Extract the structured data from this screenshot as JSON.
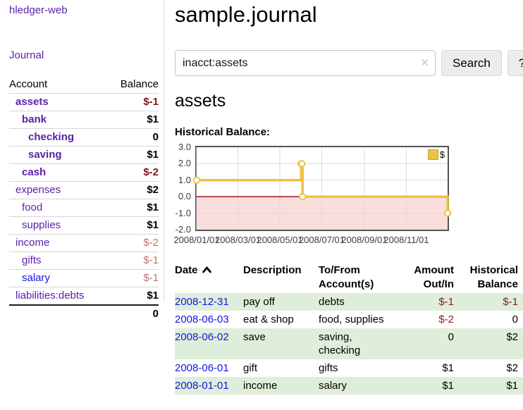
{
  "app": {
    "brand": "hledger-web",
    "nav_journal": "Journal"
  },
  "colors": {
    "link_purple": "#5b1fa8",
    "link_blue": "#1515e0",
    "negative_strong": "#7d1717",
    "negative_muted": "#bf7070",
    "register_negative": "#8b1a1a",
    "row_stripe_green": "#dfeeda",
    "series_gold": "#EDC240",
    "zero_line_red": "#8b0000",
    "below_zero_pink": "#fadddd"
  },
  "sidebar": {
    "table": {
      "col_account": "Account",
      "col_balance": "Balance"
    },
    "accounts": [
      {
        "name": "assets",
        "depth": 1,
        "bold": true,
        "link": "purple",
        "balance": "$-1",
        "amount_style": "neg-strong"
      },
      {
        "name": "bank",
        "depth": 2,
        "bold": true,
        "link": "purple",
        "balance": "$1",
        "amount_style": "pos"
      },
      {
        "name": "checking",
        "depth": 3,
        "bold": true,
        "link": "purple",
        "balance": "0",
        "amount_style": "pos"
      },
      {
        "name": "saving",
        "depth": 3,
        "bold": true,
        "link": "purple",
        "balance": "$1",
        "amount_style": "pos"
      },
      {
        "name": "cash",
        "depth": 2,
        "bold": true,
        "link": "purple",
        "balance": "$-2",
        "amount_style": "neg-strong"
      },
      {
        "name": "expenses",
        "depth": 1,
        "bold": false,
        "link": "purple",
        "balance": "$2",
        "amount_style": "pos"
      },
      {
        "name": "food",
        "depth": 2,
        "bold": false,
        "link": "purple",
        "balance": "$1",
        "amount_style": "pos"
      },
      {
        "name": "supplies",
        "depth": 2,
        "bold": false,
        "link": "purple",
        "balance": "$1",
        "amount_style": "pos"
      },
      {
        "name": "income",
        "depth": 1,
        "bold": false,
        "link": "purple",
        "balance": "$-2",
        "amount_style": "neg-muted"
      },
      {
        "name": "gifts",
        "depth": 2,
        "bold": false,
        "link": "purple",
        "balance": "$-1",
        "amount_style": "neg-muted"
      },
      {
        "name": "salary",
        "depth": 2,
        "bold": false,
        "link": "blue",
        "balance": "$-1",
        "amount_style": "neg-muted"
      },
      {
        "name": "liabilities:debts",
        "depth": 1,
        "bold": false,
        "link": "purple",
        "balance": "$1",
        "amount_style": "pos"
      }
    ],
    "total": "0"
  },
  "header": {
    "title": "sample.journal"
  },
  "search": {
    "value": "inacct:assets",
    "clear_icon": "✕",
    "button": "Search",
    "help": "?"
  },
  "register": {
    "heading": "assets",
    "chart_label": "Historical Balance:",
    "columns": {
      "date": "Date",
      "sort_icon": "chevron-up",
      "description": "Description",
      "tofrom_1": "To/From",
      "tofrom_2": "Account(s)",
      "amount_1": "Amount",
      "amount_2": "Out/In",
      "balance_1": "Historical",
      "balance_2": "Balance"
    },
    "rows": [
      {
        "date": "2008-12-31",
        "description": "pay off",
        "accounts_lines": [
          "debts"
        ],
        "amount": "$-1",
        "amount_neg": true,
        "balance": "$-1",
        "balance_neg": true,
        "shade": true
      },
      {
        "date": "2008-06-03",
        "description": "eat & shop",
        "accounts_lines": [
          "food, supplies"
        ],
        "amount": "$-2",
        "amount_neg": true,
        "balance": "0",
        "balance_neg": false,
        "shade": false
      },
      {
        "date": "2008-06-02",
        "description": "save",
        "accounts_lines": [
          "saving,",
          "checking"
        ],
        "amount": "0",
        "amount_neg": false,
        "balance": "$2",
        "balance_neg": false,
        "shade": true
      },
      {
        "date": "2008-06-01",
        "description": "gift",
        "accounts_lines": [
          "gifts"
        ],
        "amount": "$1",
        "amount_neg": false,
        "balance": "$2",
        "balance_neg": false,
        "shade": false
      },
      {
        "date": "2008-01-01",
        "description": "income",
        "accounts_lines": [
          "salary"
        ],
        "amount": "$1",
        "amount_neg": false,
        "balance": "$1",
        "balance_neg": false,
        "shade": true
      }
    ]
  },
  "chart_data": {
    "type": "line",
    "title": "Historical Balance",
    "steps": true,
    "grid": true,
    "legend_position": "top-right",
    "series": [
      {
        "name": "$",
        "color": "#EDC240",
        "points": [
          [
            "2008-01-01",
            1
          ],
          [
            "2008-06-01",
            2
          ],
          [
            "2008-06-02",
            2
          ],
          [
            "2008-06-03",
            0
          ],
          [
            "2008-12-31",
            -1
          ]
        ]
      }
    ],
    "x": {
      "range": [
        "2008-01-01",
        "2008-12-31"
      ],
      "ticks": [
        "2008-01-01",
        "2008-03-01",
        "2008-05-01",
        "2008-07-01",
        "2008-09-01",
        "2008-11-01"
      ],
      "tick_labels": [
        "2008/01/01",
        "2008/03/01",
        "2008/05/01",
        "2008/07/01",
        "2008/09/01",
        "2008/11/01"
      ]
    },
    "y": {
      "min": -2,
      "max": 3,
      "ticks": [
        3,
        2,
        1,
        0,
        -1,
        -2
      ],
      "tick_labels": [
        "3.0",
        "2.0",
        "1.0",
        "0.0",
        "-1.0",
        "-2.0"
      ]
    },
    "zero_line_color": "#8b0000",
    "below_zero_fill": "#fadddd",
    "gridline_color": "#dcdcdc"
  }
}
